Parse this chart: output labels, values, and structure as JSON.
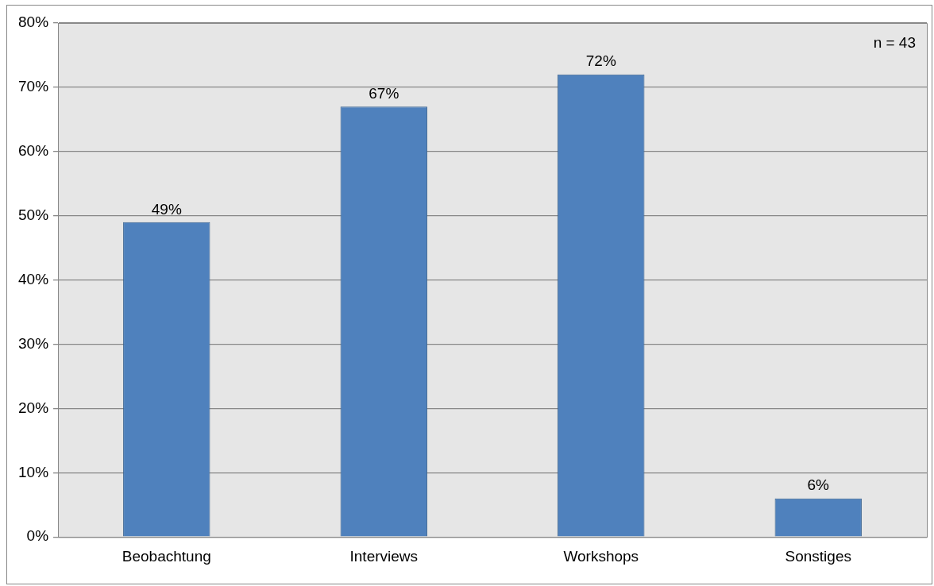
{
  "chart_data": {
    "type": "bar",
    "categories": [
      "Beobachtung",
      "Interviews",
      "Workshops",
      "Sonstiges"
    ],
    "values": [
      49,
      67,
      72,
      6
    ],
    "color": "#4f81bd",
    "value_labels": [
      "49%",
      "67%",
      "72%",
      "6%"
    ],
    "ylim": [
      0,
      80
    ],
    "yticks": [
      {
        "value": 0,
        "label": "0%"
      },
      {
        "value": 10,
        "label": "10%"
      },
      {
        "value": 20,
        "label": "20%"
      },
      {
        "value": 30,
        "label": "30%"
      },
      {
        "value": 40,
        "label": "40%"
      },
      {
        "value": 50,
        "label": "50%"
      },
      {
        "value": 60,
        "label": "60%"
      },
      {
        "value": 70,
        "label": "70%"
      },
      {
        "value": 80,
        "label": "80%"
      }
    ],
    "grid": "y",
    "legend": false,
    "annotations": [
      "n = 43"
    ]
  }
}
